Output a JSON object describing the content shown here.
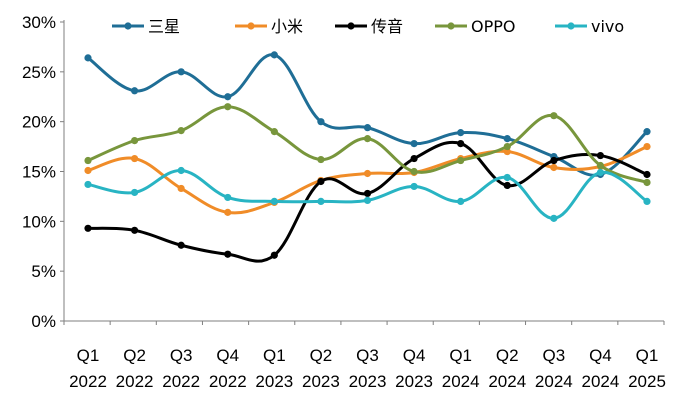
{
  "chart_data": {
    "type": "line",
    "categories": [
      [
        "Q1",
        "2022"
      ],
      [
        "Q2",
        "2022"
      ],
      [
        "Q3",
        "2022"
      ],
      [
        "Q4",
        "2022"
      ],
      [
        "Q1",
        "2023"
      ],
      [
        "Q2",
        "2023"
      ],
      [
        "Q3",
        "2023"
      ],
      [
        "Q4",
        "2023"
      ],
      [
        "Q1",
        "2024"
      ],
      [
        "Q2",
        "2024"
      ],
      [
        "Q3",
        "2024"
      ],
      [
        "Q4",
        "2024"
      ],
      [
        "Q1",
        "2025"
      ]
    ],
    "yticks": [
      "0%",
      "5%",
      "10%",
      "15%",
      "20%",
      "25%",
      "30%"
    ],
    "ylim": [
      0,
      30
    ],
    "yunit": "%",
    "grid": false,
    "legend_position": "top",
    "smooth": true,
    "series": [
      {
        "name": "三星",
        "color": "#1F6E96",
        "values": [
          26.4,
          23.1,
          25.0,
          22.5,
          26.7,
          20.0,
          19.4,
          17.8,
          18.9,
          18.3,
          16.5,
          14.7,
          19.0
        ]
      },
      {
        "name": "小米",
        "color": "#F08C28",
        "values": [
          15.1,
          16.3,
          13.3,
          10.9,
          11.9,
          14.1,
          14.8,
          14.9,
          16.3,
          17.0,
          15.4,
          15.5,
          17.5
        ]
      },
      {
        "name": "传音",
        "color": "#000000",
        "values": [
          9.3,
          9.1,
          7.6,
          6.7,
          6.6,
          14.0,
          12.8,
          16.3,
          17.8,
          13.6,
          16.1,
          16.6,
          14.7
        ]
      },
      {
        "name": "OPPO",
        "color": "#78963C",
        "values": [
          16.1,
          18.1,
          19.1,
          21.5,
          19.0,
          16.2,
          18.3,
          15.0,
          16.1,
          17.5,
          20.6,
          15.6,
          13.9
        ]
      },
      {
        "name": "vivo",
        "color": "#28B4C3",
        "values": [
          13.7,
          12.9,
          15.1,
          12.4,
          12.0,
          12.0,
          12.1,
          13.5,
          12.0,
          14.4,
          10.3,
          14.9,
          12.0
        ]
      }
    ]
  }
}
